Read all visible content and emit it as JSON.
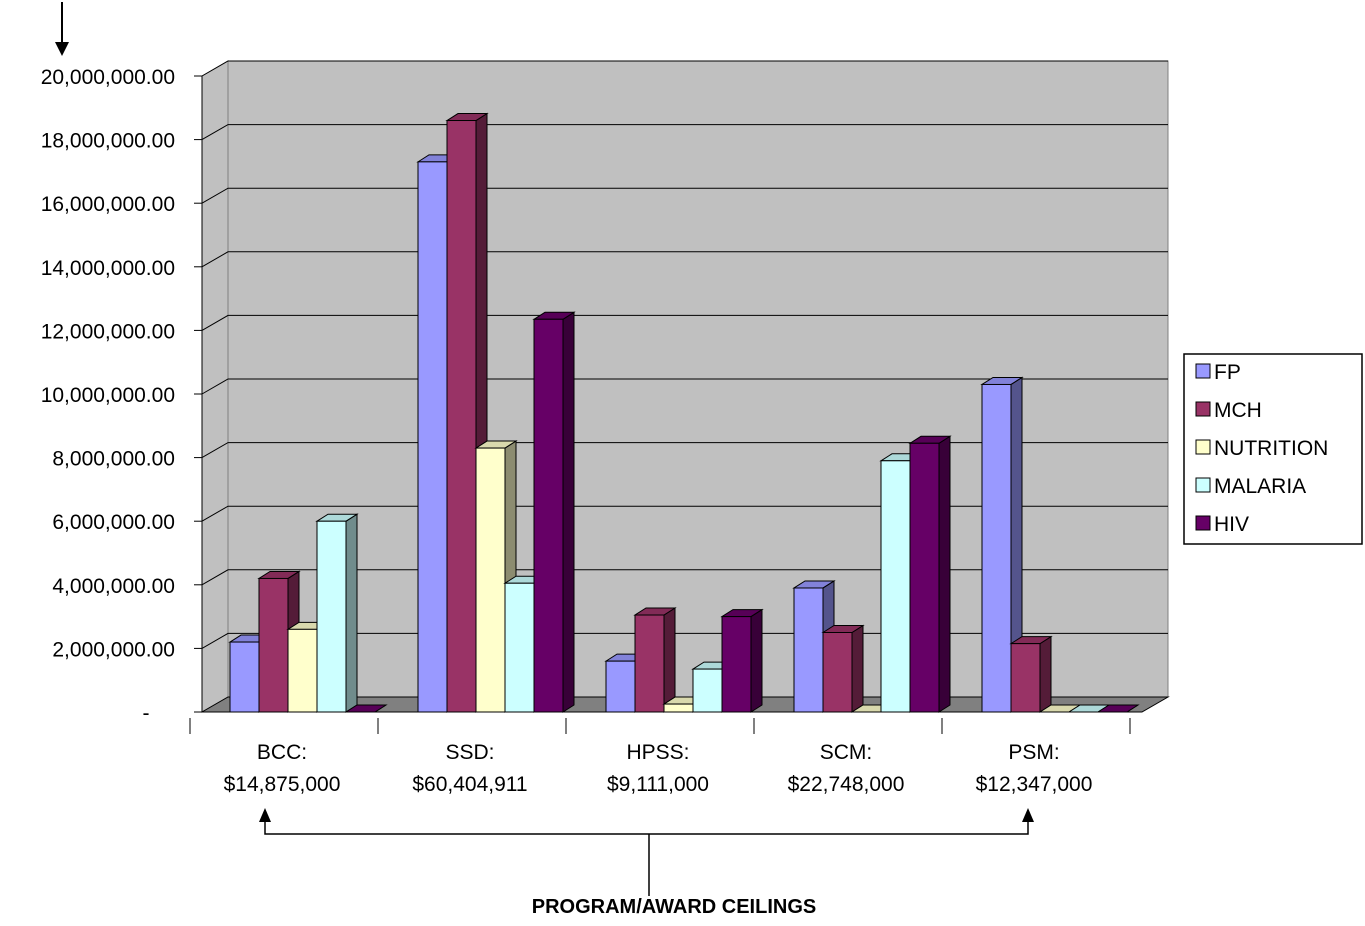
{
  "chart_data": {
    "type": "bar",
    "categories": [
      [
        "BCC:",
        "$14,875,000"
      ],
      [
        "SSD:",
        "$60,404,911"
      ],
      [
        "HPSS:",
        "$9,111,000"
      ],
      [
        "SCM:",
        "$22,748,000"
      ],
      [
        "PSM:",
        "$12,347,000"
      ]
    ],
    "series": [
      {
        "name": "FP",
        "color": "#9999ff",
        "values": [
          2200000,
          17300000,
          1600000,
          3900000,
          10300000
        ]
      },
      {
        "name": "MCH",
        "color": "#993366",
        "values": [
          4200000,
          18600000,
          3050000,
          2500000,
          2150000
        ]
      },
      {
        "name": "NUTRITION",
        "color": "#ffffcc",
        "values": [
          2600000,
          8300000,
          250000,
          0,
          0
        ]
      },
      {
        "name": "MALARIA",
        "color": "#ccffff",
        "values": [
          6000000,
          4050000,
          1350000,
          7900000,
          0
        ]
      },
      {
        "name": "HIV",
        "color": "#660066",
        "values": [
          0,
          12350000,
          3000000,
          8450000,
          0
        ]
      }
    ],
    "y_tick_labels": [
      "-",
      "2,000,000.00",
      "4,000,000.00",
      "6,000,000.00",
      "8,000,000.00",
      "10,000,000.00",
      "12,000,000.00",
      "14,000,000.00",
      "16,000,000.00",
      "18,000,000.00",
      "20,000,000.00"
    ],
    "ylim": [
      0,
      20000000
    ],
    "xlabel": "PROGRAM/AWARD CEILINGS",
    "grid": true,
    "legend_position": "right",
    "plot_background": "#c0c0c0",
    "floor_color": "#808080"
  }
}
